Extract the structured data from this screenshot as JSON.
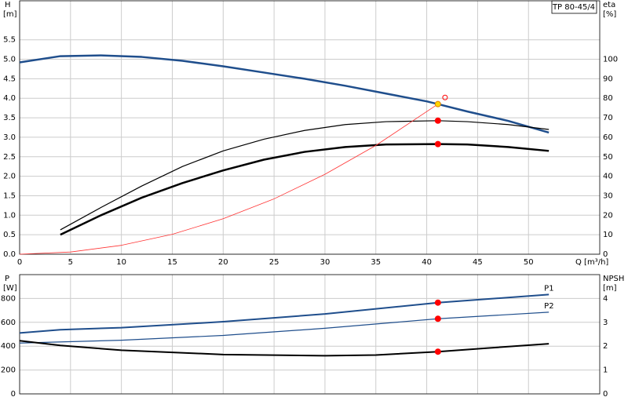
{
  "chart_data": [
    {
      "type": "line",
      "title": "TP 80-45/4",
      "ylabel": "H",
      "yunit": "[m]",
      "y2label": "eta",
      "y2unit": "[%]",
      "xlabel": "Q [m³/h]",
      "xlim": [
        0,
        57
      ],
      "xticks": [
        0,
        5,
        10,
        15,
        20,
        25,
        30,
        35,
        40,
        45,
        50
      ],
      "ylim": [
        0,
        6.5
      ],
      "yticks": [
        {
          "value": 0,
          "label": "0.0"
        },
        0.5,
        {
          "value": 1,
          "label": "1.0"
        },
        1.5,
        {
          "value": 2,
          "label": "2.0"
        },
        2.5,
        {
          "value": 3,
          "label": "3.0"
        },
        3.5,
        {
          "value": 4,
          "label": "4.0"
        },
        4.5,
        {
          "value": 5,
          "label": "5.0"
        },
        5.5
      ],
      "y2lim": [
        0,
        130
      ],
      "y2ticks": [
        0,
        10,
        20,
        30,
        40,
        50,
        60,
        70,
        80,
        90,
        100
      ],
      "grid": true,
      "series": [
        {
          "color": "#1f4e8c",
          "width": 2.5,
          "axis": "y",
          "x": [
            0,
            4,
            8,
            12,
            16,
            20,
            24,
            28,
            32,
            36,
            40,
            41.1,
            44,
            48,
            52
          ],
          "values": [
            4.92,
            5.08,
            5.1,
            5.06,
            4.96,
            4.82,
            4.66,
            4.5,
            4.32,
            4.12,
            3.92,
            3.85,
            3.66,
            3.42,
            3.12
          ]
        },
        {
          "color": "#000000",
          "width": 1.2,
          "axis": "y2",
          "x": [
            4,
            8,
            12,
            16,
            20,
            24,
            28,
            32,
            36,
            41.1,
            44,
            48,
            52
          ],
          "values": [
            12.5,
            24,
            35,
            45,
            53,
            59,
            63.5,
            66.5,
            68,
            68.5,
            68,
            66.5,
            64
          ]
        },
        {
          "color": "#000000",
          "width": 2.5,
          "axis": "y2",
          "x": [
            4,
            8,
            12,
            16,
            20,
            24,
            28,
            32,
            36,
            41.1,
            44,
            48,
            52
          ],
          "values": [
            10,
            20,
            29,
            36.5,
            43,
            48.5,
            52.5,
            55,
            56.3,
            56.5,
            56.3,
            55,
            53
          ]
        },
        {
          "color": "#ff3333",
          "width": 0.8,
          "axis": "y",
          "x": [
            0,
            5,
            10,
            15,
            20,
            25,
            30,
            35,
            41.1
          ],
          "values": [
            0,
            0.057,
            0.228,
            0.51,
            0.91,
            1.42,
            2.05,
            2.79,
            3.85
          ]
        }
      ],
      "markers": [
        {
          "x": 41.1,
          "y": 3.85,
          "axis": "y",
          "color": "#ffd700"
        },
        {
          "x": 41.1,
          "y": 68.5,
          "axis": "y2",
          "color": "#ff0000"
        },
        {
          "x": 41.1,
          "y": 56.5,
          "axis": "y2",
          "color": "#ff0000"
        },
        {
          "x": 41.8,
          "y": 4.02,
          "axis": "y",
          "color": "#ff0000",
          "open": true
        }
      ]
    },
    {
      "type": "line",
      "ylabel": "P",
      "yunit": "[W]",
      "y2label": "NPSH",
      "y2unit": "[m]",
      "xlim": [
        0,
        57
      ],
      "ylim": [
        0,
        1000
      ],
      "yticks": [
        0,
        200,
        400,
        600,
        800
      ],
      "y2lim": [
        0,
        5
      ],
      "y2ticks": [
        0,
        1,
        2,
        3,
        4
      ],
      "grid": true,
      "series": [
        {
          "name": "P1",
          "color": "#1f4e8c",
          "width": 2,
          "axis": "y",
          "x": [
            0,
            4,
            10,
            20,
            30,
            41.1,
            52
          ],
          "values": [
            511,
            538,
            555,
            605,
            670,
            765,
            833
          ]
        },
        {
          "name": "P2",
          "color": "#1f4e8c",
          "width": 1.2,
          "axis": "y",
          "x": [
            0,
            10,
            20,
            30,
            41.1,
            52
          ],
          "values": [
            426,
            450,
            490,
            550,
            630,
            685
          ]
        },
        {
          "color": "#000000",
          "width": 2,
          "axis": "y2",
          "x": [
            0,
            4,
            10,
            20,
            30,
            35,
            41.1,
            46,
            52
          ],
          "values": [
            2.23,
            2.03,
            1.83,
            1.65,
            1.6,
            1.63,
            1.77,
            1.92,
            2.1
          ]
        }
      ],
      "markers": [
        {
          "x": 41.1,
          "y": 765,
          "axis": "y",
          "color": "#ff0000"
        },
        {
          "x": 41.1,
          "y": 630,
          "axis": "y",
          "color": "#ff0000"
        },
        {
          "x": 41.1,
          "y": 1.77,
          "axis": "y2",
          "color": "#ff0000"
        }
      ]
    }
  ]
}
